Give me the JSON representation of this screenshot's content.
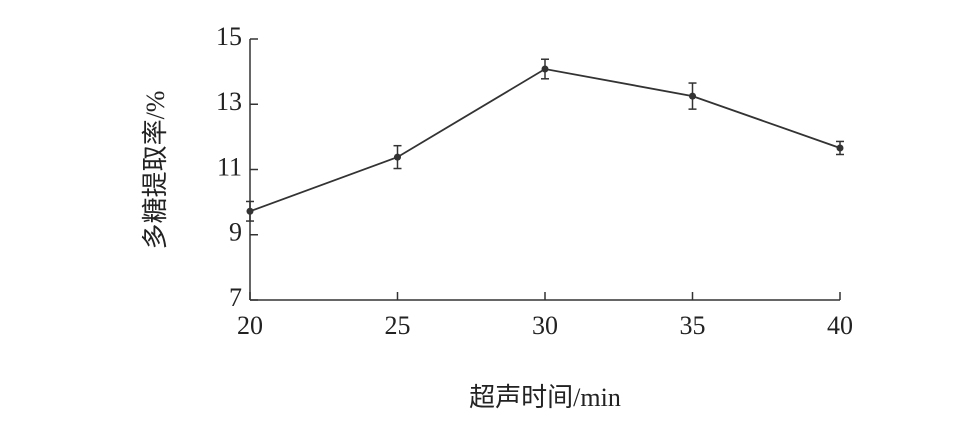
{
  "chart_data": {
    "type": "line",
    "x_label": "超声时间/min",
    "y_label": "多糖提取率/%",
    "x": [
      20,
      25,
      30,
      35,
      40
    ],
    "series": [
      {
        "color": "#333333",
        "values": [
          9.72,
          11.38,
          14.08,
          13.25,
          11.66
        ],
        "errors": [
          0.3,
          0.35,
          0.3,
          0.4,
          0.2
        ]
      }
    ],
    "xlim": [
      20,
      40
    ],
    "xticks": [
      20,
      25,
      30,
      35,
      40
    ],
    "ylim": [
      7,
      15
    ],
    "yticks": [
      7,
      9,
      11,
      13,
      15
    ]
  }
}
